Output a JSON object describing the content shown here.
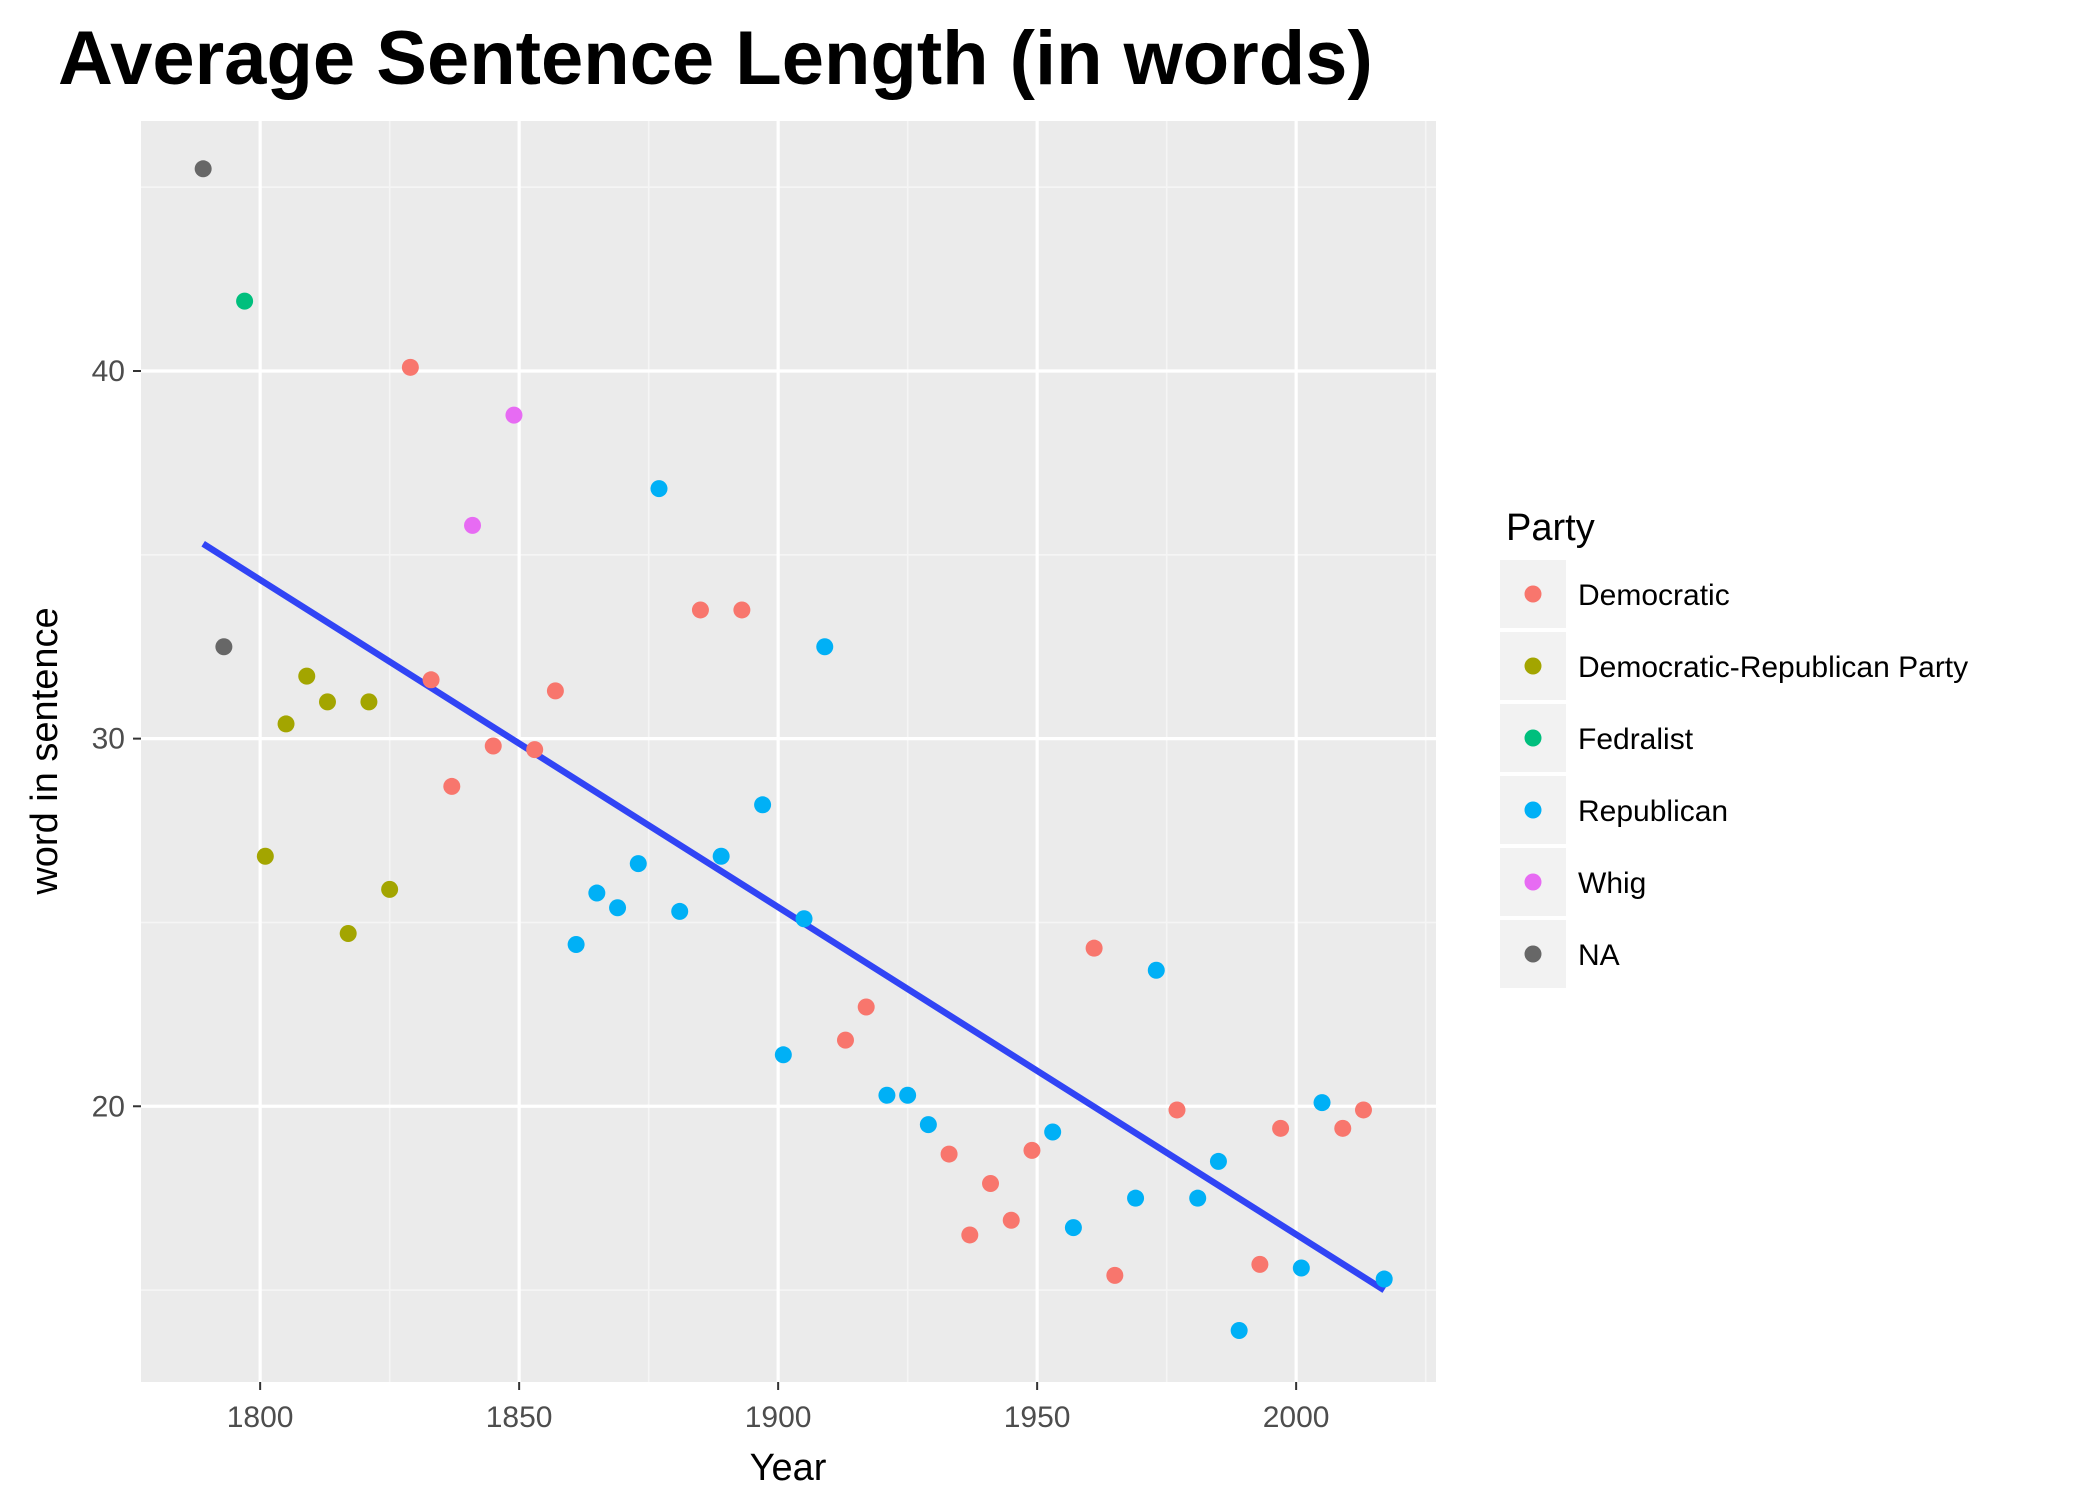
{
  "chart_data": {
    "type": "scatter",
    "title": "Average Sentence Length (in words)",
    "xlabel": "Year",
    "ylabel": "word in sentence",
    "xlim": [
      1777,
      2027
    ],
    "ylim": [
      12.5,
      46.8
    ],
    "x_ticks": [
      1800,
      1850,
      1900,
      1950,
      2000
    ],
    "y_ticks": [
      20,
      30,
      40
    ],
    "x_tick_labels": [
      "1800",
      "1850",
      "1900",
      "1950",
      "2000"
    ],
    "y_tick_labels": [
      "20",
      "30",
      "40"
    ],
    "grid": true,
    "legend": {
      "title": "Party",
      "position": "right"
    },
    "series": [
      {
        "name": "Democratic",
        "color": "#F8766D",
        "points": [
          [
            1829,
            40.1
          ],
          [
            1833,
            31.6
          ],
          [
            1837,
            28.7
          ],
          [
            1845,
            29.8
          ],
          [
            1853,
            29.7
          ],
          [
            1857,
            31.3
          ],
          [
            1885,
            33.5
          ],
          [
            1893,
            33.5
          ],
          [
            1913,
            21.8
          ],
          [
            1917,
            22.7
          ],
          [
            1933,
            18.7
          ],
          [
            1937,
            16.5
          ],
          [
            1941,
            17.9
          ],
          [
            1945,
            16.9
          ],
          [
            1949,
            18.8
          ],
          [
            1961,
            24.3
          ],
          [
            1965,
            15.4
          ],
          [
            1977,
            19.9
          ],
          [
            1993,
            15.7
          ],
          [
            1997,
            19.4
          ],
          [
            2009,
            19.4
          ],
          [
            2013,
            19.9
          ]
        ]
      },
      {
        "name": "Democratic-Republican Party",
        "color": "#A3A500",
        "points": [
          [
            1801,
            26.8
          ],
          [
            1805,
            30.4
          ],
          [
            1809,
            31.7
          ],
          [
            1813,
            31.0
          ],
          [
            1817,
            24.7
          ],
          [
            1821,
            31.0
          ],
          [
            1825,
            25.9
          ]
        ]
      },
      {
        "name": "Fedralist",
        "color": "#00BF7D",
        "points": [
          [
            1797,
            41.9
          ]
        ]
      },
      {
        "name": "Republican",
        "color": "#00B0F6",
        "points": [
          [
            1861,
            24.4
          ],
          [
            1865,
            25.8
          ],
          [
            1869,
            25.4
          ],
          [
            1873,
            26.6
          ],
          [
            1877,
            36.8
          ],
          [
            1881,
            25.3
          ],
          [
            1889,
            26.8
          ],
          [
            1897,
            28.2
          ],
          [
            1901,
            21.4
          ],
          [
            1905,
            25.1
          ],
          [
            1909,
            32.5
          ],
          [
            1921,
            20.3
          ],
          [
            1925,
            20.3
          ],
          [
            1929,
            19.5
          ],
          [
            1953,
            19.3
          ],
          [
            1957,
            16.7
          ],
          [
            1969,
            17.5
          ],
          [
            1973,
            23.7
          ],
          [
            1981,
            17.5
          ],
          [
            1985,
            18.5
          ],
          [
            1989,
            13.9
          ],
          [
            2001,
            15.6
          ],
          [
            2005,
            20.1
          ],
          [
            2017,
            15.3
          ]
        ]
      },
      {
        "name": "Whig",
        "color": "#E76BF3",
        "points": [
          [
            1841,
            35.8
          ],
          [
            1849,
            38.8
          ]
        ]
      },
      {
        "name": "NA",
        "color": "#676767",
        "points": [
          [
            1789,
            45.5
          ],
          [
            1793,
            32.5
          ]
        ]
      }
    ],
    "trend_line": {
      "color": "#3144F5",
      "points": [
        [
          1789,
          35.3
        ],
        [
          2017,
          15.0
        ]
      ]
    }
  }
}
